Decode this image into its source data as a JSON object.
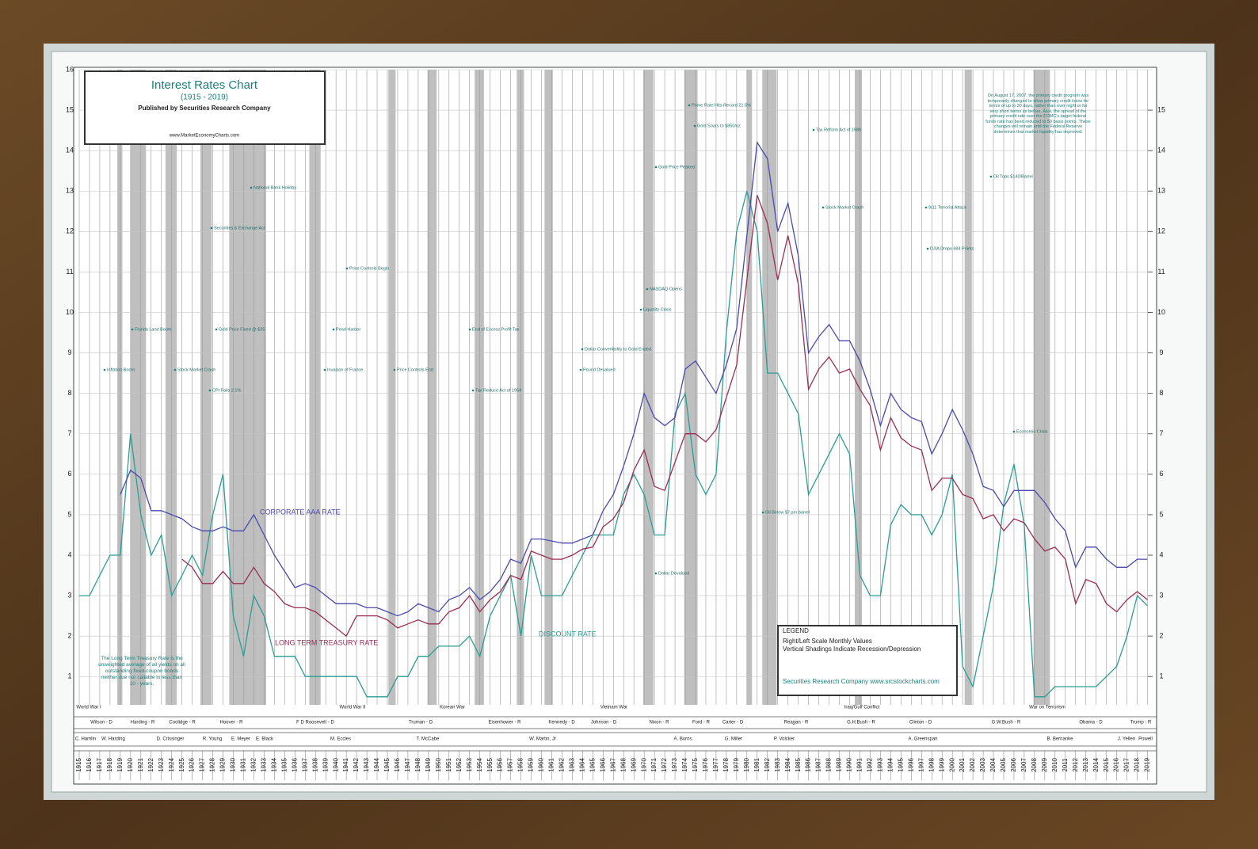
{
  "chart_data": {
    "type": "line",
    "title": "Interest Rates Chart",
    "subtitle": "(1915 - 2019)",
    "publisher": "Published by Securities Research Company",
    "website": "www.MarketEconomyCharts.com",
    "x": [
      1915,
      1916,
      1917,
      1918,
      1919,
      1920,
      1921,
      1922,
      1923,
      1924,
      1925,
      1926,
      1927,
      1928,
      1929,
      1930,
      1931,
      1932,
      1933,
      1934,
      1935,
      1936,
      1937,
      1938,
      1939,
      1940,
      1941,
      1942,
      1943,
      1944,
      1945,
      1946,
      1947,
      1948,
      1949,
      1950,
      1951,
      1952,
      1953,
      1954,
      1955,
      1956,
      1957,
      1958,
      1959,
      1960,
      1961,
      1962,
      1963,
      1964,
      1965,
      1966,
      1967,
      1968,
      1969,
      1970,
      1971,
      1972,
      1973,
      1974,
      1975,
      1976,
      1977,
      1978,
      1979,
      1980,
      1981,
      1982,
      1983,
      1984,
      1985,
      1986,
      1987,
      1988,
      1989,
      1990,
      1991,
      1992,
      1993,
      1994,
      1995,
      1996,
      1997,
      1998,
      1999,
      2000,
      2001,
      2002,
      2003,
      2004,
      2005,
      2006,
      2007,
      2008,
      2009,
      2010,
      2011,
      2012,
      2013,
      2014,
      2015,
      2016,
      2017,
      2018,
      2019
    ],
    "xlim": [
      1915,
      2019.5
    ],
    "ylim": [
      0.3,
      16
    ],
    "yticks": [
      1,
      2,
      3,
      4,
      5,
      6,
      7,
      8,
      9,
      10,
      11,
      12,
      13,
      14,
      15,
      16
    ],
    "y2lim": [
      0.3,
      16
    ],
    "y2ticks": [
      1,
      2,
      3,
      4,
      5,
      6,
      7,
      8,
      9,
      10,
      11,
      12,
      13,
      14,
      15
    ],
    "grid": true,
    "legend_prefix": "Value",
    "series": [
      {
        "name": "DISCOUNT",
        "label": "DISCOUNT RATE",
        "color": "#2a9d95",
        "values": [
          3,
          3,
          3.5,
          4,
          4,
          7,
          5,
          4,
          4.5,
          3,
          3.5,
          4,
          3.5,
          5,
          6,
          2.5,
          1.5,
          3,
          2.5,
          1.5,
          1.5,
          1.5,
          1,
          1,
          1,
          1,
          1,
          1,
          0.5,
          0.5,
          0.5,
          1,
          1,
          1.5,
          1.5,
          1.75,
          1.75,
          1.75,
          2,
          1.5,
          2.5,
          3,
          3.5,
          2,
          4,
          3,
          3,
          3,
          3.5,
          4,
          4.5,
          4.5,
          4.5,
          5.5,
          6,
          5.5,
          4.5,
          4.5,
          7.5,
          8,
          6,
          5.5,
          6,
          9.5,
          12,
          13,
          12,
          8.5,
          8.5,
          8,
          7.5,
          5.5,
          6,
          6.5,
          7,
          6.5,
          3.5,
          3,
          3,
          4.75,
          5.25,
          5,
          5,
          4.5,
          5,
          6,
          1.25,
          0.75,
          2,
          3.25,
          5.25,
          6.25,
          4.75,
          0.5,
          0.5,
          0.75,
          0.75,
          0.75,
          0.75,
          0.75,
          1,
          1.25,
          2,
          3,
          2.75
        ]
      },
      {
        "name": "TREASURY",
        "label": "LONG TERM TREASURY RATE",
        "color": "#9b2d55",
        "values": [
          null,
          null,
          null,
          null,
          null,
          null,
          null,
          null,
          null,
          null,
          3.9,
          3.7,
          3.3,
          3.3,
          3.6,
          3.3,
          3.3,
          3.7,
          3.3,
          3.1,
          2.8,
          2.7,
          2.7,
          2.6,
          2.4,
          2.2,
          2.0,
          2.5,
          2.5,
          2.5,
          2.4,
          2.2,
          2.3,
          2.4,
          2.3,
          2.3,
          2.6,
          2.7,
          3.0,
          2.6,
          2.9,
          3.1,
          3.5,
          3.4,
          4.1,
          4.0,
          3.9,
          3.9,
          4.0,
          4.15,
          4.2,
          4.7,
          4.9,
          5.3,
          6.1,
          6.6,
          5.7,
          5.6,
          6.3,
          7.0,
          7.0,
          6.8,
          7.1,
          7.9,
          8.7,
          10.8,
          12.9,
          12.2,
          10.8,
          11.9,
          10.7,
          8.1,
          8.6,
          8.9,
          8.5,
          8.6,
          8.1,
          7.7,
          6.6,
          7.4,
          6.9,
          6.7,
          6.6,
          5.6,
          5.9,
          5.9,
          5.5,
          5.4,
          4.9,
          5.0,
          4.6,
          4.9,
          4.8,
          4.4,
          4.1,
          4.2,
          3.9,
          2.8,
          3.4,
          3.3,
          2.8,
          2.6,
          2.9,
          3.1,
          2.9
        ]
      },
      {
        "name": "CORPORATE",
        "label": "CORPORATE AAA RATE",
        "color": "#4a4ab0",
        "values": [
          null,
          null,
          null,
          null,
          5.5,
          6.1,
          5.9,
          5.1,
          5.1,
          5.0,
          4.9,
          4.7,
          4.6,
          4.6,
          4.7,
          4.6,
          4.6,
          5.0,
          4.5,
          4.0,
          3.6,
          3.2,
          3.3,
          3.2,
          3.0,
          2.8,
          2.8,
          2.8,
          2.7,
          2.7,
          2.6,
          2.5,
          2.6,
          2.8,
          2.7,
          2.6,
          2.9,
          3.0,
          3.2,
          2.9,
          3.1,
          3.4,
          3.9,
          3.8,
          4.4,
          4.4,
          4.35,
          4.3,
          4.3,
          4.4,
          4.5,
          5.1,
          5.5,
          6.2,
          7.0,
          8.0,
          7.4,
          7.2,
          7.4,
          8.6,
          8.8,
          8.4,
          8.0,
          8.7,
          9.6,
          11.9,
          14.2,
          13.8,
          12.0,
          12.7,
          11.4,
          9.0,
          9.4,
          9.7,
          9.3,
          9.3,
          8.8,
          8.1,
          7.2,
          8.0,
          7.6,
          7.4,
          7.3,
          6.5,
          7.0,
          7.6,
          7.1,
          6.5,
          5.7,
          5.6,
          5.2,
          5.6,
          5.6,
          5.6,
          5.3,
          4.9,
          4.6,
          3.7,
          4.2,
          4.2,
          3.9,
          3.7,
          3.7,
          3.9,
          3.9
        ]
      }
    ],
    "recessions": [
      [
        1918.7,
        1919.2
      ],
      [
        1920.0,
        1921.5
      ],
      [
        1923.4,
        1924.5
      ],
      [
        1926.8,
        1927.9
      ],
      [
        1929.6,
        1933.2
      ],
      [
        1937.4,
        1938.5
      ],
      [
        1945.1,
        1945.8
      ],
      [
        1948.9,
        1949.8
      ],
      [
        1953.5,
        1954.4
      ],
      [
        1957.6,
        1958.3
      ],
      [
        1960.3,
        1961.1
      ],
      [
        1969.9,
        1970.9
      ],
      [
        1973.9,
        1975.2
      ],
      [
        1980.0,
        1980.5
      ],
      [
        1981.5,
        1982.9
      ],
      [
        1990.5,
        1991.2
      ],
      [
        2001.2,
        2001.9
      ],
      [
        2007.9,
        2009.5
      ]
    ],
    "legend_title": "LEGEND",
    "legend_lines": [
      "Right/Left Scale Monthly Values",
      "Vertical Shadings Indicate Recession/Depression"
    ],
    "legend_footer": "Securities Research Company  www.srcstockcharts.com",
    "notes": [
      "The Long Term Treasury Rate is the unweighted average of all yields on all outstanding fixed-coupon bonds neither due nor callable in less than 10 - years.",
      "On August 17, 2007, the primary credit program was temporarily changed to allow primary credit loans for terms of up to 30 days, rather than over night or for very short terms as before. Also, the spread of the primary credit rate over the FOMC's target federal funds rate has been reduced to 50 basis points. These changes will remain until the Federal Reserve determines that market liquidity has improved."
    ],
    "annotations": [
      "Inflation Boom",
      "Florida Land Boom",
      "Stock Market Crash",
      "CPI Falls 2.1%",
      "Gold Price Fixed @ $35",
      "Securities & Exchange Act",
      "National Bank Holiday",
      "Price Controls Begin",
      "Pearl Harbor",
      "Invasion of France",
      "Price Controls End",
      "End of Excess Profit Tax",
      "Tax Reduce Act of 1954",
      "Gold Price Peaked",
      "NASDAQ Opens",
      "Liquidity Crisis",
      "Dollar Convertibility to Gold Ended",
      "Pound Devalued",
      "Dollar Devalued",
      "Prime Rate Hits Record 21.5%",
      "Gold Soars to $850/oz",
      "Tax Reform Act of 1986",
      "Stock Market Crash",
      "Oil Below $7 per barrel",
      "9/11 Terrorist Attack",
      "DJIA Drops 684 Points",
      "Oil Tops $140/Barrel",
      "Economic Crisis"
    ],
    "wars": [
      "World War I",
      "World War II",
      "Korean War",
      "Vietnam War",
      "Iraq/Gulf Conflict",
      "War on Terrorism"
    ],
    "presidents": [
      "Wilson - D",
      "Harding - R",
      "Coolidge - R",
      "Hoover - R",
      "F D Roosevelt - D",
      "Truman - D",
      "Eisenhower - R",
      "Kennedy - D",
      "Johnson - D",
      "Nixon - R",
      "Ford - R",
      "Carter - D",
      "Reagan - R",
      "G.H.Bush - R",
      "Clinton - D",
      "G.W.Bush - R",
      "Obama - D",
      "Trump - R"
    ],
    "fed_chairs": [
      "C. Hamlin",
      "W. Harding",
      "D. Crissinger",
      "R. Young",
      "E. Meyer",
      "E. Black",
      "M. Eccles",
      "T. McCabe",
      "W. Martin, Jr",
      "A. Burns",
      "G. Miller",
      "P. Volcker",
      "A. Greenspan",
      "B. Bernanke",
      "J. Yellen",
      "Powell"
    ]
  }
}
